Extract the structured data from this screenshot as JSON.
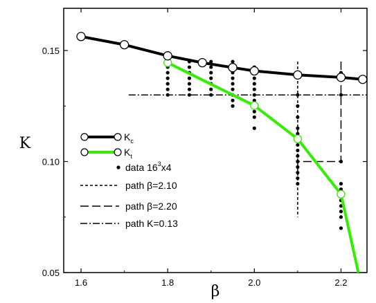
{
  "chart_data": {
    "type": "line",
    "xlabel": "β",
    "ylabel": "K",
    "xlim": [
      1.56,
      2.26
    ],
    "ylim": [
      0.05,
      0.169
    ],
    "x_ticks": [
      "1.6",
      "1.8",
      "2.0",
      "2.2"
    ],
    "x_tick_values": [
      1.6,
      1.8,
      2.0,
      2.2
    ],
    "y_ticks": [
      "0.05",
      "0.10",
      "0.15"
    ],
    "y_tick_values": [
      0.05,
      0.1,
      0.15
    ],
    "grid": false,
    "legend_position": "center-left",
    "colors": {
      "Kc": "#000000",
      "Kt": "#33ee00",
      "data": "#000000"
    },
    "legend": {
      "kc": {
        "main": "K",
        "sub": "c"
      },
      "kt": {
        "main": "K",
        "sub": "t"
      },
      "data": {
        "pre": "data 16",
        "sup": "3",
        "post": "x4"
      },
      "path210": "path β=2.10",
      "path220": "path β=2.20",
      "path013": "path K=0.13"
    },
    "series": [
      {
        "name": "Kc",
        "x": [
          1.6,
          1.7,
          1.8,
          1.88,
          1.95,
          2.0,
          2.1,
          2.2,
          2.25
        ],
        "y": [
          0.1563,
          0.1526,
          0.1476,
          0.1445,
          0.1423,
          0.1408,
          0.139,
          0.1379,
          0.137
        ]
      },
      {
        "name": "Kt",
        "x": [
          1.8,
          2.0,
          2.1,
          2.2,
          2.24
        ],
        "y": [
          0.1445,
          0.1252,
          0.1102,
          0.0853,
          0.05
        ],
        "markers": [
          true,
          true,
          true,
          true,
          false
        ]
      }
    ],
    "data_points": [
      {
        "x": 1.8,
        "y": [
          0.145,
          0.1425,
          0.14,
          0.1375,
          0.135,
          0.1325,
          0.13
        ]
      },
      {
        "x": 1.85,
        "y": [
          0.145,
          0.1425,
          0.14,
          0.1375,
          0.135,
          0.1325,
          0.13
        ]
      },
      {
        "x": 1.9,
        "y": [
          0.145,
          0.1425,
          0.14,
          0.1375,
          0.135,
          0.1325,
          0.13
        ]
      },
      {
        "x": 1.95,
        "y": [
          0.145,
          0.1425,
          0.14,
          0.1375,
          0.135,
          0.1325,
          0.13,
          0.1275,
          0.125
        ]
      },
      {
        "x": 2.0,
        "y": [
          0.1425,
          0.14,
          0.1375,
          0.135,
          0.1325,
          0.13,
          0.1275,
          0.125,
          0.1225,
          0.12,
          0.115
        ]
      },
      {
        "x": 2.1,
        "y": [
          0.14,
          0.13,
          0.125,
          0.12,
          0.115,
          0.1125,
          0.11,
          0.1075,
          0.105,
          0.1025,
          0.1,
          0.0975,
          0.095,
          0.0925,
          0.09
        ]
      },
      {
        "x": 2.2,
        "y": [
          0.14,
          0.13,
          0.1,
          0.09,
          0.0875,
          0.085,
          0.0825,
          0.08,
          0.0775,
          0.075,
          0.07
        ]
      }
    ],
    "paths": [
      {
        "name": "path β=2.10",
        "style": "short-dash",
        "points": [
          [
            2.1,
            0.145
          ],
          [
            2.1,
            0.075
          ]
        ]
      },
      {
        "name": "path β=2.20",
        "style": "long-dash",
        "points": [
          [
            2.2,
            0.145
          ],
          [
            2.2,
            0.1
          ],
          [
            2.1,
            0.1
          ]
        ]
      },
      {
        "name": "path K=0.13",
        "style": "dash-dot",
        "points": [
          [
            1.71,
            0.13
          ],
          [
            2.26,
            0.13
          ]
        ]
      }
    ]
  }
}
